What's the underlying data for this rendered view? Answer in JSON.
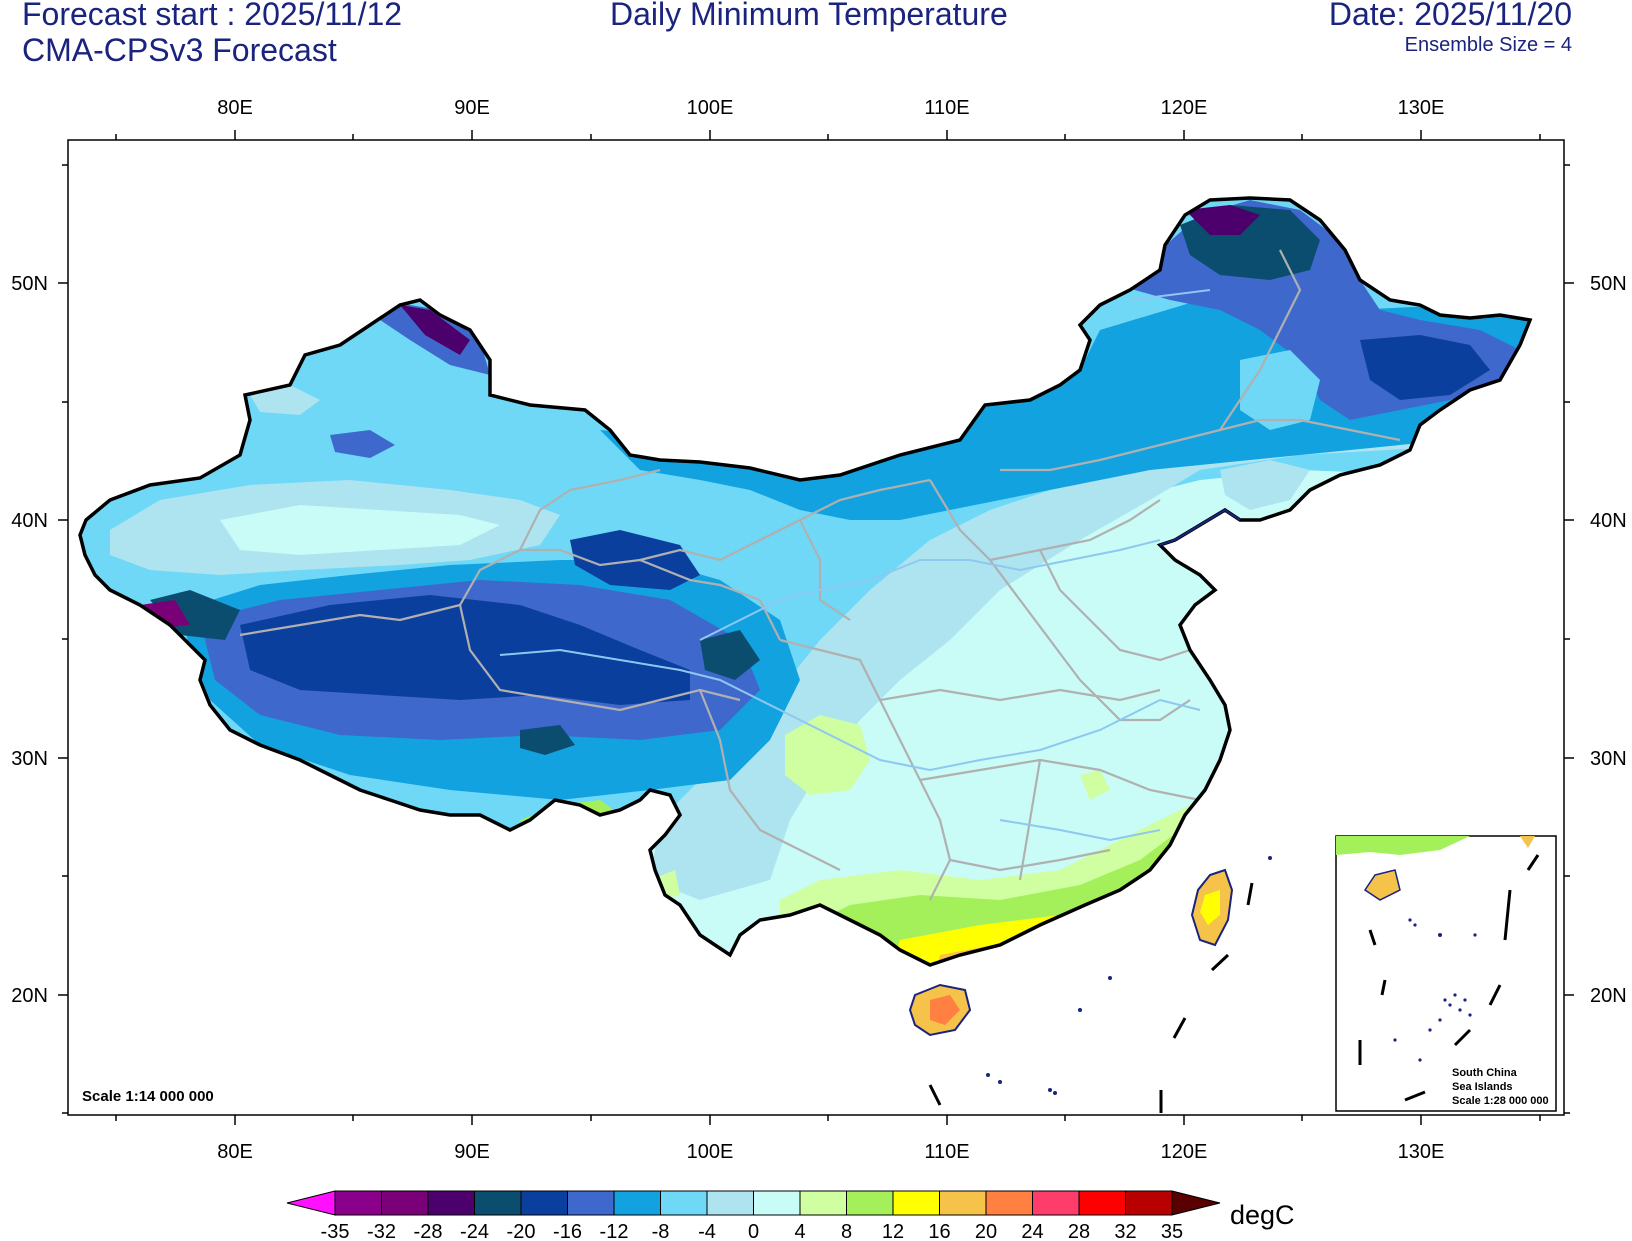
{
  "header": {
    "forecast_start": "Forecast start : 2025/11/12",
    "model": "CMA-CPSv3 Forecast",
    "title": "Daily Minimum Temperature",
    "date": "Date: 2025/11/20",
    "ensemble": "Ensemble Size = 4"
  },
  "axes": {
    "lon_labels": [
      "80E",
      "90E",
      "100E",
      "110E",
      "120E",
      "130E"
    ],
    "lat_labels": [
      "50N",
      "40N",
      "30N",
      "20N"
    ]
  },
  "map": {
    "scale_main": "Scale 1:14 000 000",
    "inset_title": "South China",
    "inset_subtitle": "Sea Islands",
    "inset_scale": "Scale 1:28 000 000"
  },
  "colorbar": {
    "unit": "degC",
    "labels": [
      "-35",
      "-32",
      "-28",
      "-24",
      "-20",
      "-16",
      "-12",
      "-8",
      "-4",
      "0",
      "4",
      "8",
      "12",
      "16",
      "20",
      "24",
      "28",
      "32",
      "35"
    ],
    "colors": [
      "#8a008a",
      "#7a0078",
      "#4b006b",
      "#0b4d6e",
      "#0b3f9e",
      "#3e68cc",
      "#12a2e0",
      "#6fd8f7",
      "#aee4f0",
      "#c9fbf7",
      "#cfffa0",
      "#a4f05a",
      "#ffff00",
      "#f5c24a",
      "#ff8040",
      "#ff3d6a",
      "#ff0000",
      "#b80000"
    ],
    "low_color": "#ff10ff",
    "high_color": "#5a0000"
  }
}
